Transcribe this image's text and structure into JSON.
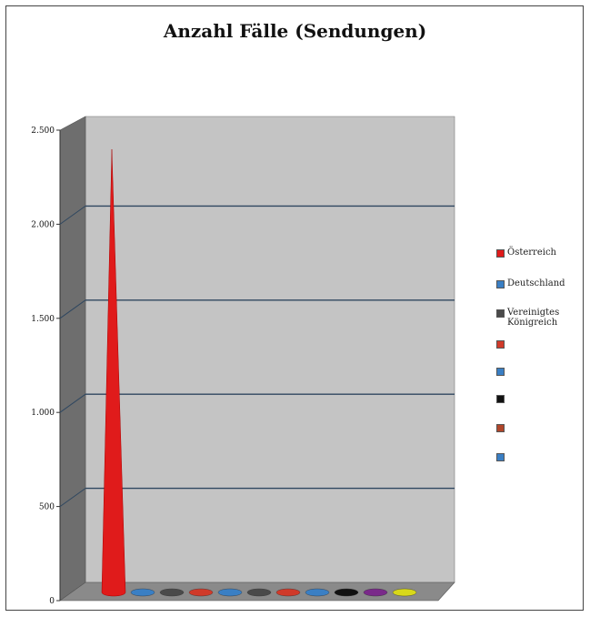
{
  "chart_data": {
    "type": "bar",
    "title": "Anzahl Fälle (Sendungen)",
    "xlabel": "",
    "ylabel": "",
    "ylim": [
      0,
      2500
    ],
    "yticks": [
      {
        "value": 0,
        "label": "0"
      },
      {
        "value": 500,
        "label": "500"
      },
      {
        "value": 1000,
        "label": "1.000"
      },
      {
        "value": 1500,
        "label": "1.500"
      },
      {
        "value": 2000,
        "label": "2.000"
      },
      {
        "value": 2500,
        "label": "2.500"
      }
    ],
    "grid": true,
    "legend_position": "right",
    "series": [
      {
        "name": "Österreich",
        "values": [
          2350
        ],
        "color": "#e01b1b"
      },
      {
        "name": "Deutschland",
        "values": [
          8
        ],
        "color": "#3a7fc4"
      },
      {
        "name": "Vereinigtes Königreich",
        "values": [
          6
        ],
        "color": "#4a4a4a"
      },
      {
        "name": "",
        "values": [
          5
        ],
        "color": "#d03a2a"
      },
      {
        "name": "",
        "values": [
          5
        ],
        "color": "#3a7fc4"
      },
      {
        "name": "",
        "values": [
          4
        ],
        "color": "#4a4a4a"
      },
      {
        "name": "",
        "values": [
          4
        ],
        "color": "#d03a2a"
      },
      {
        "name": "",
        "values": [
          4
        ],
        "color": "#3a7fc4"
      },
      {
        "name": "",
        "values": [
          3
        ],
        "color": "#111111"
      },
      {
        "name": "",
        "values": [
          3
        ],
        "color": "#7a2a8a"
      },
      {
        "name": "",
        "values": [
          3
        ],
        "color": "#d8d81a"
      }
    ],
    "legend_entries": [
      {
        "label": "Österreich",
        "color": "#e01b1b"
      },
      {
        "label": "Deutschland",
        "color": "#3a7fc4"
      },
      {
        "label": "Vereinigtes Königreich",
        "color": "#4a4a4a"
      },
      {
        "label": "",
        "color": "#d03a2a"
      },
      {
        "label": "",
        "color": "#3a7fc4"
      },
      {
        "label": "",
        "color": "#111111"
      },
      {
        "label": "",
        "color": "#b0462a"
      },
      {
        "label": "",
        "color": "#3a7fc4"
      }
    ]
  }
}
